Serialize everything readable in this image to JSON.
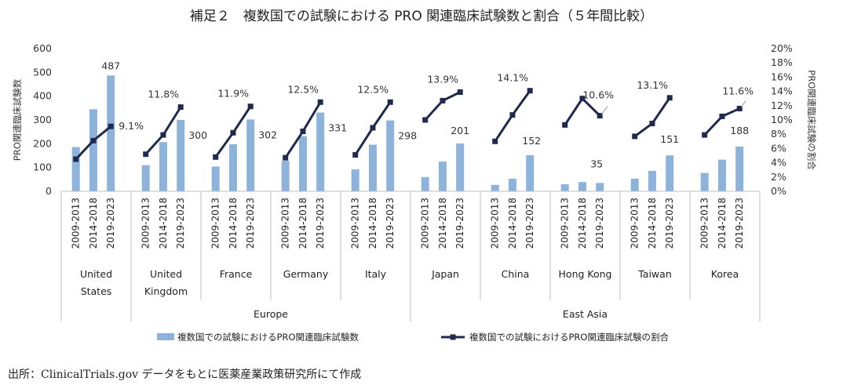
{
  "chart_data": {
    "type": "bar",
    "title": "補足２　複数国での試験における PRO 関連臨床試験数と割合（５年間比較）",
    "periods": [
      "2009-2013",
      "2014-2018",
      "2019-2023"
    ],
    "categories": [
      "United States",
      "United Kingdom",
      "France",
      "Germany",
      "Italy",
      "Japan",
      "China",
      "Hong Kong",
      "Taiwan",
      "Korea"
    ],
    "category_lines": [
      [
        "United",
        "States"
      ],
      [
        "United",
        "Kingdom"
      ],
      [
        "France"
      ],
      [
        "Germany"
      ],
      [
        "Italy"
      ],
      [
        "Japan"
      ],
      [
        "China"
      ],
      [
        "Hong Kong"
      ],
      [
        "Taiwan"
      ],
      [
        "Korea"
      ]
    ],
    "regions": [
      {
        "name": "Europe",
        "label": "Europe",
        "from": 1,
        "to": 4
      },
      {
        "name": "East Asia",
        "label": "East Asia",
        "from": 5,
        "to": 9
      }
    ],
    "ylabel": "PRO関連臨床試験数",
    "y2label": "PRO関連臨床試験の割合",
    "ylim": [
      0,
      600
    ],
    "yticks": [
      "0",
      "100",
      "200",
      "300",
      "400",
      "500",
      "600"
    ],
    "y2lim": [
      0,
      20
    ],
    "y2ticks": [
      "0%",
      "2%",
      "4%",
      "6%",
      "8%",
      "10%",
      "12%",
      "14%",
      "16%",
      "18%",
      "20%"
    ],
    "series": [
      {
        "name": "複数国での試験におけるPRO関連臨床試験数",
        "type": "bar",
        "color": "#8db3db",
        "values": [
          [
            186,
            345,
            487
          ],
          [
            110,
            207,
            300
          ],
          [
            104,
            198,
            302
          ],
          [
            128,
            232,
            331
          ],
          [
            92,
            196,
            298
          ],
          [
            60,
            125,
            201
          ],
          [
            27,
            53,
            152
          ],
          [
            30,
            39,
            35
          ],
          [
            53,
            86,
            151
          ],
          [
            77,
            133,
            188
          ]
        ]
      },
      {
        "name": "複数国での試験におけるPRO関連臨床試験の割合",
        "type": "line",
        "color": "#1f2a4d",
        "unit": "%",
        "values": [
          [
            4.5,
            7.1,
            9.1
          ],
          [
            5.2,
            7.9,
            11.8
          ],
          [
            4.8,
            8.2,
            11.9
          ],
          [
            4.7,
            8.4,
            12.5
          ],
          [
            5.1,
            8.9,
            12.5
          ],
          [
            10.0,
            12.7,
            13.9
          ],
          [
            7.0,
            10.7,
            14.1
          ],
          [
            9.3,
            13.0,
            10.6
          ],
          [
            7.7,
            9.5,
            13.1
          ],
          [
            7.9,
            10.5,
            11.6
          ]
        ]
      }
    ],
    "bar_labels": [
      "487",
      "300",
      "302",
      "331",
      "298",
      "201",
      "152",
      "35",
      "151",
      "188"
    ],
    "pct_labels": [
      "9.1%",
      "11.8%",
      "11.9%",
      "12.5%",
      "12.5%",
      "13.9%",
      "14.1%",
      "10.6%",
      "13.1%",
      "11.6%"
    ],
    "legend": {
      "bar_label": "複数国での試験におけるPRO関連臨床試験数",
      "line_label": "複数国での試験におけるPRO関連臨床試験の割合"
    }
  },
  "source_note": "出所：ClinicalTrials.gov データをもとに医薬産業政策研究所にて作成"
}
